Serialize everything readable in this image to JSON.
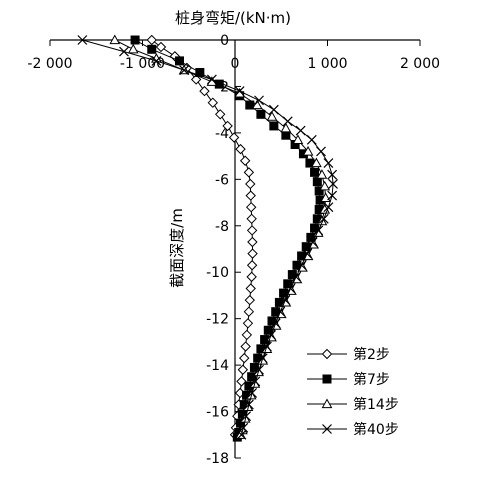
{
  "chart_data": {
    "type": "line",
    "title": "",
    "xlabel": "桩身弯矩/(kN·m)",
    "ylabel": "截面深度/m",
    "x_axis_position": "top",
    "xlim": [
      -2000,
      2000
    ],
    "ylim": [
      0,
      -18
    ],
    "x_ticks": [
      -2000,
      -1000,
      0,
      1000,
      2000
    ],
    "x_tick_labels": [
      "-2 000",
      "-1 000",
      "0",
      "1 000",
      "2 000"
    ],
    "y_ticks": [
      0,
      -2,
      -4,
      -6,
      -8,
      -10,
      -12,
      -14,
      -16,
      -18
    ],
    "y_tick_labels": [
      "0",
      "-2",
      "-4",
      "-6",
      "-8",
      "-10",
      "-12",
      "-14",
      "-16",
      "-18"
    ],
    "grid": false,
    "legend_placement": "bottom-right",
    "series": [
      {
        "name": "第2步",
        "marker": "diamond-open",
        "points": [
          [
            -900,
            0
          ],
          [
            -800,
            -0.3
          ],
          [
            -650,
            -0.7
          ],
          [
            -520,
            -1.2
          ],
          [
            -420,
            -1.7
          ],
          [
            -330,
            -2.2
          ],
          [
            -240,
            -2.7
          ],
          [
            -160,
            -3.2
          ],
          [
            -80,
            -3.7
          ],
          [
            -10,
            -4.2
          ],
          [
            60,
            -4.7
          ],
          [
            110,
            -5.2
          ],
          [
            150,
            -5.7
          ],
          [
            165,
            -6.2
          ],
          [
            170,
            -6.7
          ],
          [
            175,
            -7.2
          ],
          [
            180,
            -7.7
          ],
          [
            185,
            -8.2
          ],
          [
            188,
            -8.7
          ],
          [
            190,
            -9.2
          ],
          [
            185,
            -9.7
          ],
          [
            180,
            -10.2
          ],
          [
            170,
            -10.7
          ],
          [
            160,
            -11.2
          ],
          [
            150,
            -11.7
          ],
          [
            140,
            -12.2
          ],
          [
            128,
            -12.7
          ],
          [
            115,
            -13.2
          ],
          [
            100,
            -13.7
          ],
          [
            85,
            -14.2
          ],
          [
            70,
            -14.7
          ],
          [
            55,
            -15.2
          ],
          [
            40,
            -15.7
          ],
          [
            25,
            -16.2
          ],
          [
            10,
            -16.7
          ],
          [
            0,
            -17.0
          ]
        ]
      },
      {
        "name": "第7步",
        "marker": "square-filled",
        "points": [
          [
            -1080,
            0
          ],
          [
            -900,
            -0.4
          ],
          [
            -600,
            -0.9
          ],
          [
            -380,
            -1.4
          ],
          [
            -170,
            -1.9
          ],
          [
            50,
            -2.4
          ],
          [
            160,
            -2.8
          ],
          [
            280,
            -3.2
          ],
          [
            420,
            -3.7
          ],
          [
            550,
            -4.1
          ],
          [
            650,
            -4.5
          ],
          [
            740,
            -4.9
          ],
          [
            810,
            -5.3
          ],
          [
            860,
            -5.7
          ],
          [
            890,
            -6.1
          ],
          [
            910,
            -6.5
          ],
          [
            920,
            -6.9
          ],
          [
            910,
            -7.3
          ],
          [
            890,
            -7.7
          ],
          [
            860,
            -8.1
          ],
          [
            820,
            -8.5
          ],
          [
            770,
            -8.9
          ],
          [
            720,
            -9.3
          ],
          [
            670,
            -9.7
          ],
          [
            620,
            -10.1
          ],
          [
            570,
            -10.5
          ],
          [
            525,
            -10.9
          ],
          [
            480,
            -11.3
          ],
          [
            440,
            -11.7
          ],
          [
            400,
            -12.1
          ],
          [
            360,
            -12.5
          ],
          [
            320,
            -12.9
          ],
          [
            280,
            -13.3
          ],
          [
            245,
            -13.7
          ],
          [
            210,
            -14.1
          ],
          [
            180,
            -14.5
          ],
          [
            150,
            -14.9
          ],
          [
            125,
            -15.3
          ],
          [
            100,
            -15.7
          ],
          [
            80,
            -16.1
          ],
          [
            60,
            -16.5
          ],
          [
            40,
            -16.9
          ],
          [
            25,
            -17.1
          ]
        ]
      },
      {
        "name": "第14步",
        "marker": "triangle-open",
        "points": [
          [
            -1300,
            0
          ],
          [
            -1100,
            -0.4
          ],
          [
            -850,
            -0.8
          ],
          [
            -550,
            -1.3
          ],
          [
            -250,
            -1.8
          ],
          [
            50,
            -2.3
          ],
          [
            240,
            -2.8
          ],
          [
            400,
            -3.3
          ],
          [
            550,
            -3.8
          ],
          [
            680,
            -4.3
          ],
          [
            790,
            -4.8
          ],
          [
            880,
            -5.3
          ],
          [
            940,
            -5.8
          ],
          [
            970,
            -6.3
          ],
          [
            980,
            -6.8
          ],
          [
            970,
            -7.3
          ],
          [
            940,
            -7.8
          ],
          [
            900,
            -8.3
          ],
          [
            850,
            -8.8
          ],
          [
            790,
            -9.3
          ],
          [
            730,
            -9.8
          ],
          [
            670,
            -10.3
          ],
          [
            610,
            -10.8
          ],
          [
            550,
            -11.3
          ],
          [
            500,
            -11.8
          ],
          [
            445,
            -12.3
          ],
          [
            395,
            -12.8
          ],
          [
            345,
            -13.3
          ],
          [
            300,
            -13.8
          ],
          [
            255,
            -14.3
          ],
          [
            215,
            -14.8
          ],
          [
            175,
            -15.3
          ],
          [
            140,
            -15.8
          ],
          [
            110,
            -16.3
          ],
          [
            80,
            -16.8
          ],
          [
            60,
            -17.0
          ]
        ]
      },
      {
        "name": "第40步",
        "marker": "cross",
        "points": [
          [
            -1650,
            0
          ],
          [
            -1200,
            -0.5
          ],
          [
            -850,
            -0.9
          ],
          [
            -550,
            -1.3
          ],
          [
            -250,
            -1.7
          ],
          [
            50,
            -2.2
          ],
          [
            260,
            -2.6
          ],
          [
            420,
            -3.0
          ],
          [
            570,
            -3.5
          ],
          [
            710,
            -3.9
          ],
          [
            830,
            -4.3
          ],
          [
            930,
            -4.8
          ],
          [
            1010,
            -5.3
          ],
          [
            1050,
            -5.8
          ],
          [
            1060,
            -6.2
          ],
          [
            1050,
            -6.7
          ],
          [
            1010,
            -7.2
          ],
          [
            960,
            -7.7
          ],
          [
            900,
            -8.2
          ],
          [
            840,
            -8.7
          ],
          [
            780,
            -9.2
          ],
          [
            720,
            -9.7
          ],
          [
            660,
            -10.2
          ],
          [
            600,
            -10.7
          ],
          [
            545,
            -11.2
          ],
          [
            490,
            -11.7
          ],
          [
            440,
            -12.2
          ],
          [
            390,
            -12.7
          ],
          [
            345,
            -13.2
          ],
          [
            300,
            -13.7
          ],
          [
            260,
            -14.2
          ],
          [
            220,
            -14.7
          ],
          [
            185,
            -15.2
          ],
          [
            150,
            -15.7
          ],
          [
            120,
            -16.2
          ],
          [
            90,
            -16.7
          ],
          [
            70,
            -17.0
          ]
        ]
      }
    ]
  }
}
